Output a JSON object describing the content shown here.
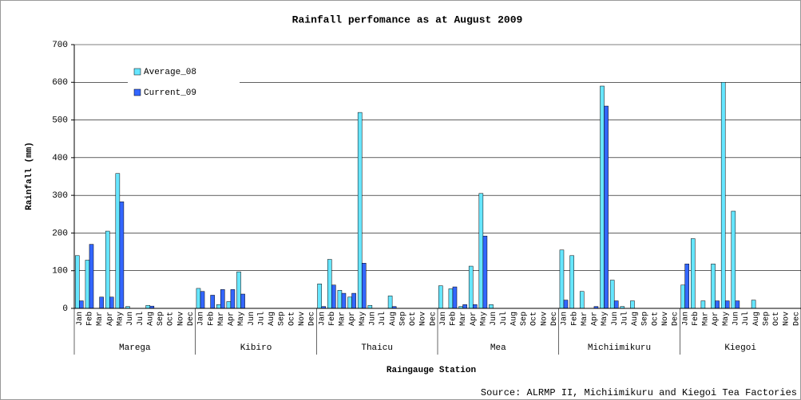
{
  "chart_data": {
    "type": "bar",
    "title": "Rainfall perfomance as at August 2009",
    "y_label": "Rainfall (mm)",
    "x_label": "Raingauge Station",
    "source": "Source: ALRMP II, Michiimikuru and Kiegoi Tea Factories",
    "groups": [
      "Marega",
      "Kibiro",
      "Thaicu",
      "Mea",
      "Michiimikuru",
      "Kiegoi"
    ],
    "categories": [
      "Jan",
      "Feb",
      "Mar",
      "Apr",
      "May",
      "Jun",
      "Jul",
      "Aug",
      "Sep",
      "Oct",
      "Nov",
      "Dec",
      "Jan",
      "Feb",
      "Mar",
      "Apr",
      "May",
      "Jun",
      "Jul",
      "Aug",
      "Sep",
      "Oct",
      "Nov",
      "Dec",
      "Jan",
      "Feb",
      "Mar",
      "Apr",
      "May",
      "Jun",
      "Jul",
      "Aug",
      "Sep",
      "Oct",
      "Nov",
      "Dec",
      "Jan",
      "Feb",
      "Mar",
      "Apr",
      "May",
      "Jun",
      "Jul",
      "Aug",
      "Sep",
      "Oct",
      "Nov",
      "Dec",
      "Jan",
      "Feb",
      "Mar",
      "Apr",
      "May",
      "Jun",
      "Jul",
      "Aug",
      "Sep",
      "Oct",
      "Nov",
      "Dec",
      "Jan",
      "Feb",
      "Mar",
      "Apr",
      "May",
      "Jun",
      "Jul",
      "Aug",
      "Sep",
      "Oct",
      "Nov",
      "Dec"
    ],
    "series": [
      {
        "name": "Average_08",
        "color": "#66e6ff",
        "values": [
          140,
          128,
          0,
          205,
          358,
          5,
          0,
          8,
          0,
          0,
          0,
          0,
          53,
          0,
          10,
          18,
          97,
          0,
          0,
          0,
          0,
          0,
          0,
          0,
          65,
          130,
          48,
          30,
          520,
          8,
          0,
          33,
          0,
          0,
          0,
          0,
          60,
          52,
          5,
          112,
          305,
          10,
          0,
          0,
          0,
          0,
          0,
          0,
          155,
          140,
          45,
          0,
          590,
          75,
          5,
          20,
          0,
          0,
          0,
          0,
          62,
          185,
          20,
          118,
          600,
          258,
          0,
          22,
          0,
          0,
          0,
          0
        ]
      },
      {
        "name": "Current_09",
        "color": "#3366ff",
        "values": [
          20,
          170,
          30,
          30,
          283,
          0,
          0,
          6,
          0,
          0,
          0,
          0,
          45,
          35,
          50,
          50,
          38,
          0,
          0,
          0,
          0,
          0,
          0,
          0,
          5,
          62,
          40,
          40,
          120,
          0,
          0,
          5,
          0,
          0,
          0,
          0,
          0,
          57,
          10,
          10,
          192,
          0,
          0,
          0,
          0,
          0,
          0,
          0,
          22,
          0,
          0,
          5,
          537,
          20,
          0,
          0,
          0,
          0,
          0,
          0,
          118,
          0,
          0,
          20,
          20,
          20,
          0,
          0,
          0,
          0,
          0,
          0
        ]
      }
    ],
    "ylim": [
      0,
      700
    ],
    "yticks": [
      0,
      100,
      200,
      300,
      400,
      500,
      600,
      700
    ],
    "grid": true
  }
}
